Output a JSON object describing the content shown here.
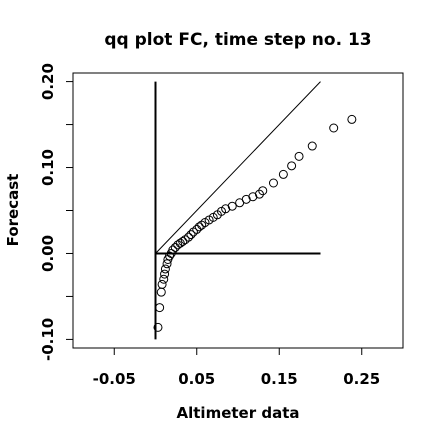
{
  "chart_data": {
    "type": "scatter",
    "title": "qq plot FC, time step no. 13",
    "xlabel": "Altimeter data",
    "ylabel": "Forecast",
    "xlim": [
      -0.1,
      0.3
    ],
    "ylim": [
      -0.11,
      0.21
    ],
    "x_ticks": [
      -0.05,
      0.05,
      0.15,
      0.25
    ],
    "x_tick_labels": [
      "-0.05",
      "0.05",
      "0.15",
      "0.25"
    ],
    "y_ticks": [
      -0.1,
      0.0,
      0.1,
      0.2
    ],
    "y_tick_labels": [
      "-0.10",
      "0.00",
      "0.10",
      "0.20"
    ],
    "y_minor_ticks": [
      -0.05,
      0.05,
      0.15
    ],
    "grid": false,
    "reference_lines": [
      {
        "x": [
          0.0,
          0.0
        ],
        "y": [
          -0.1,
          0.2
        ]
      },
      {
        "x": [
          0.0,
          0.2
        ],
        "y": [
          0.0,
          0.0
        ]
      },
      {
        "x": [
          0.0,
          0.2
        ],
        "y": [
          0.0,
          0.2
        ]
      }
    ],
    "series": [
      {
        "marker": "open-circle",
        "x": [
          0.003,
          0.005,
          0.007,
          0.008,
          0.01,
          0.011,
          0.012,
          0.014,
          0.015,
          0.017,
          0.019,
          0.021,
          0.024,
          0.027,
          0.03,
          0.033,
          0.036,
          0.04,
          0.043,
          0.046,
          0.05,
          0.053,
          0.056,
          0.06,
          0.065,
          0.07,
          0.075,
          0.08,
          0.085,
          0.093,
          0.102,
          0.11,
          0.118,
          0.126,
          0.13,
          0.143,
          0.155,
          0.165,
          0.174,
          0.19,
          0.216,
          0.238
        ],
        "y": [
          -0.086,
          -0.063,
          -0.045,
          -0.036,
          -0.03,
          -0.024,
          -0.018,
          -0.012,
          -0.007,
          -0.003,
          0.0,
          0.004,
          0.007,
          0.01,
          0.012,
          0.014,
          0.016,
          0.019,
          0.022,
          0.025,
          0.028,
          0.031,
          0.033,
          0.036,
          0.039,
          0.042,
          0.045,
          0.049,
          0.052,
          0.055,
          0.059,
          0.063,
          0.066,
          0.069,
          0.073,
          0.082,
          0.092,
          0.102,
          0.113,
          0.125,
          0.146,
          0.156
        ]
      }
    ]
  }
}
